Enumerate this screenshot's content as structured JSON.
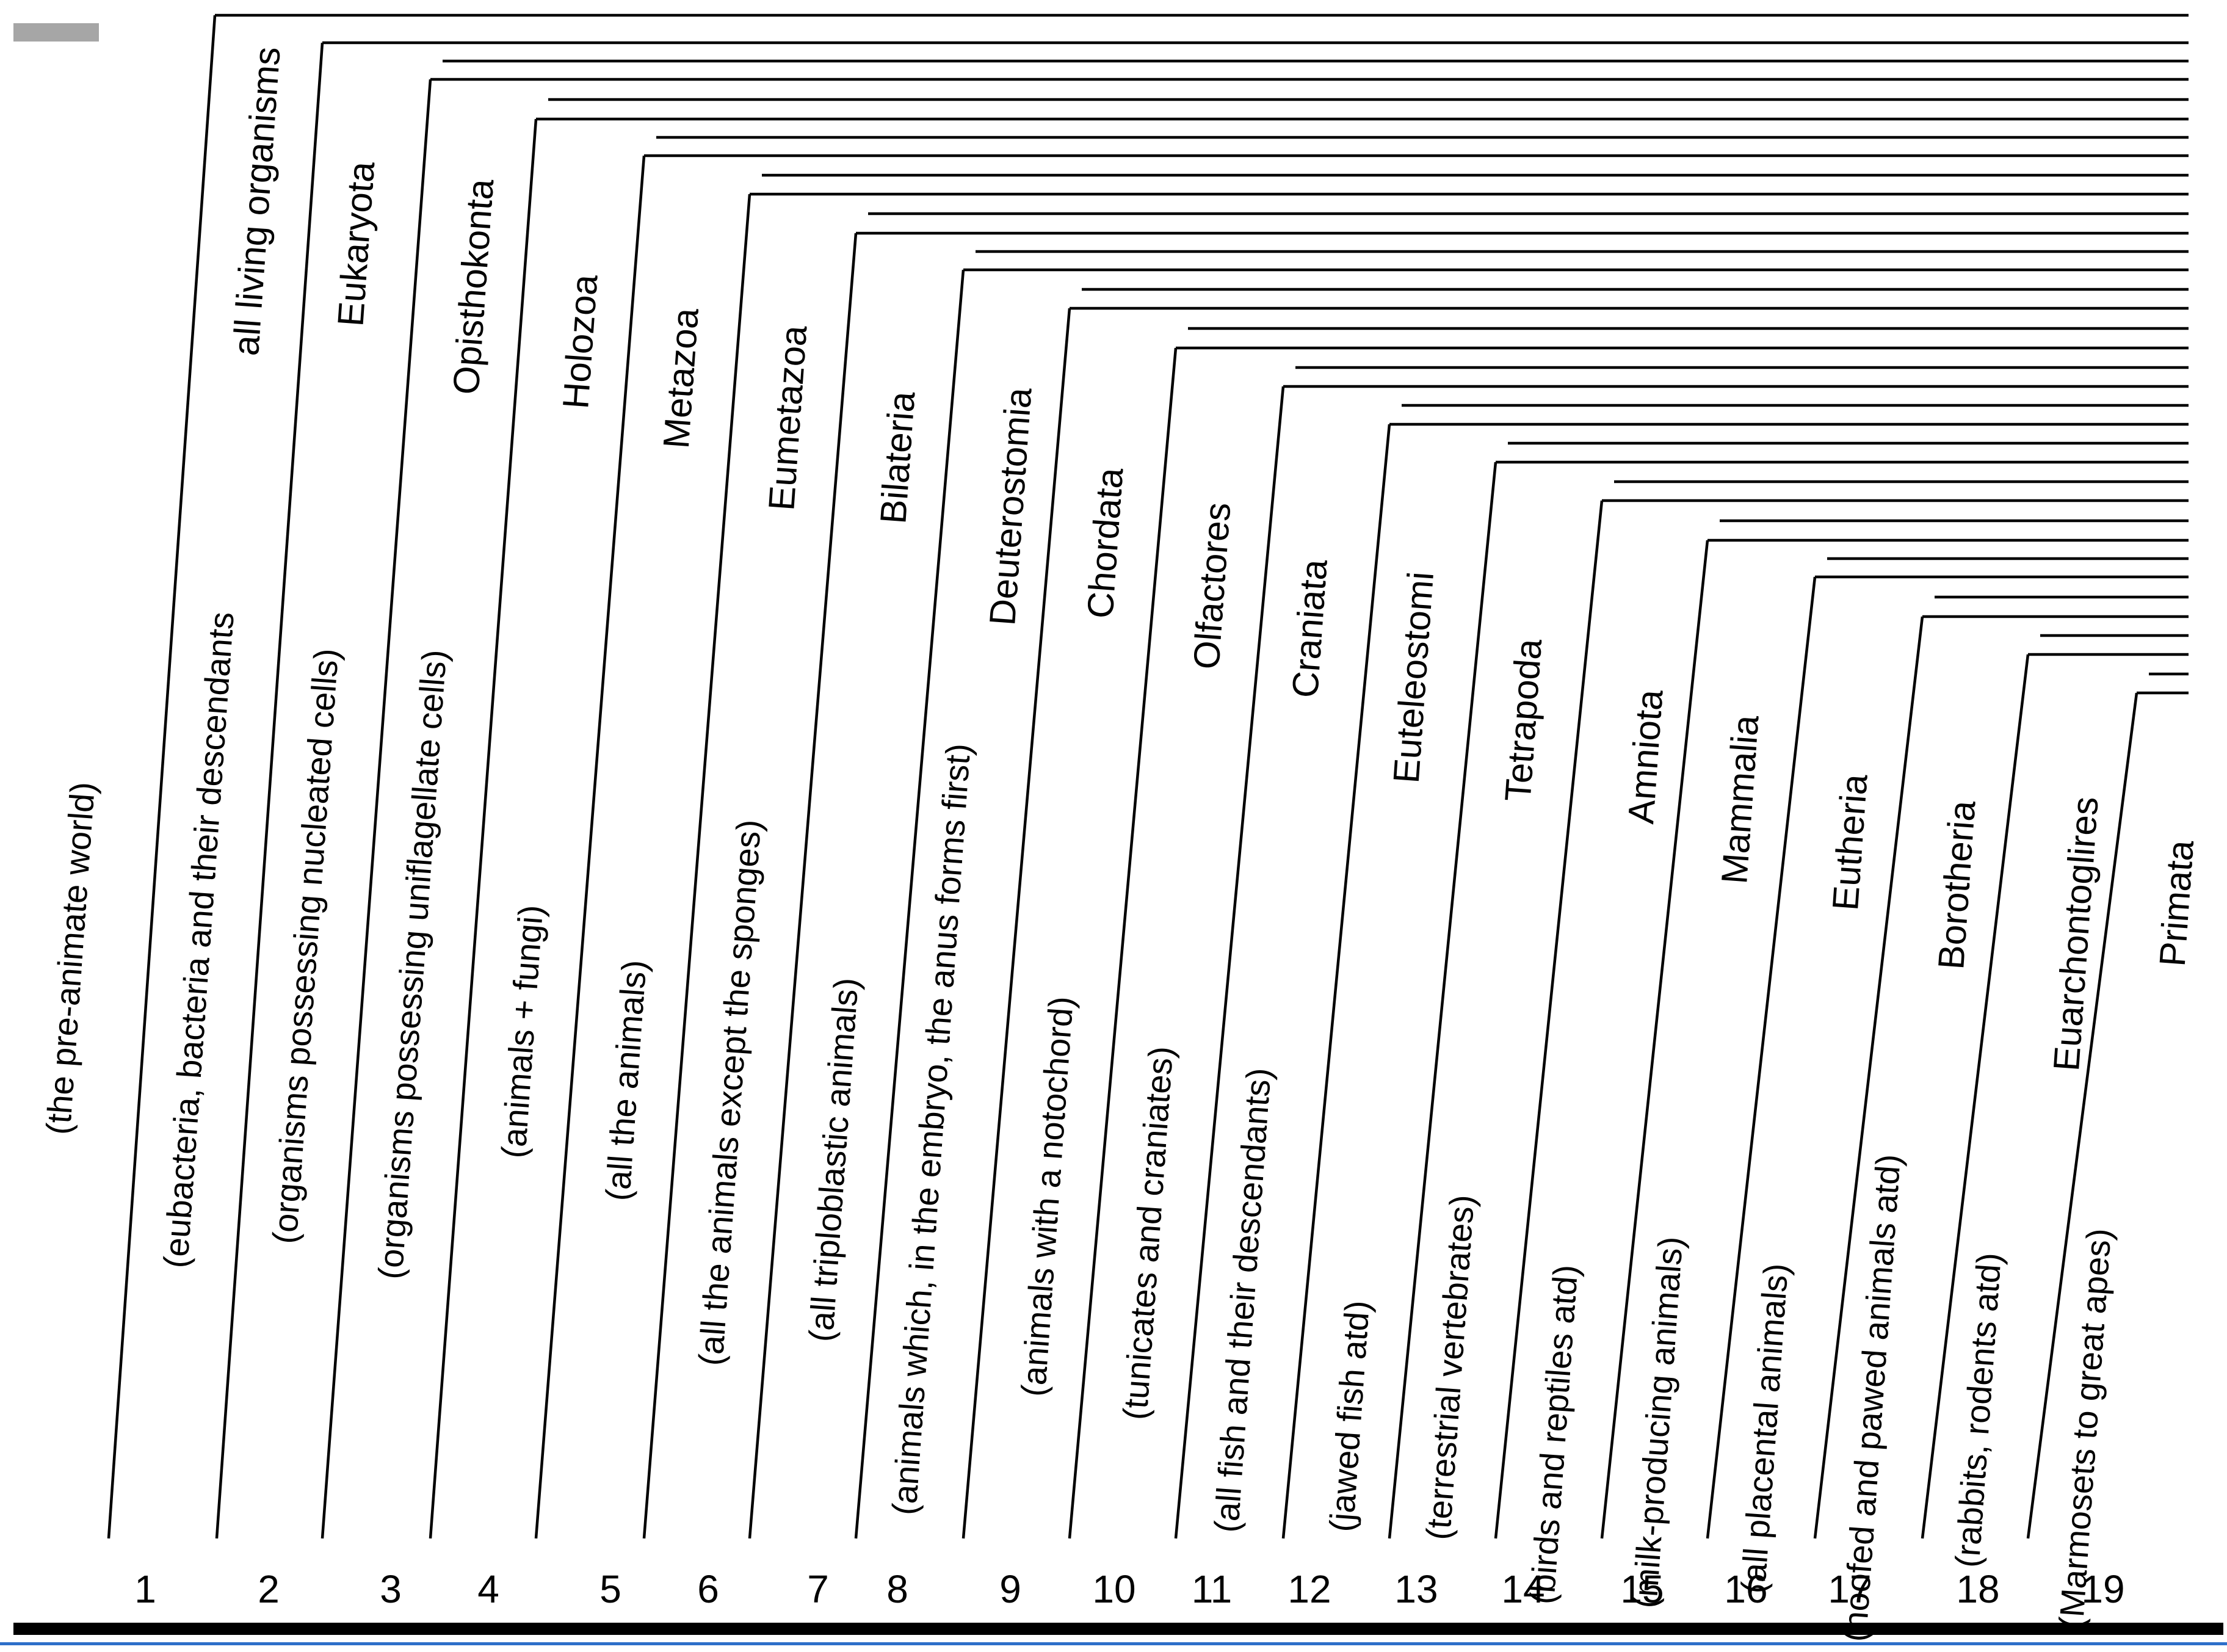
{
  "diagram": {
    "type": "cladogram",
    "line_color": "#000000",
    "bottom_bar_color": "#000000",
    "accent_rule_color": "#2e6fc9",
    "corner_swatch_color": "#a6a6a6",
    "stages": [
      {
        "number": "1",
        "name": "",
        "description": "(the pre-animate world)"
      },
      {
        "number": "2",
        "name": "all living organisms",
        "description": "(eubacteria, bacteria and their descendants"
      },
      {
        "number": "3",
        "name": "Eukaryota",
        "description": "(organisms possessing nucleated cells)"
      },
      {
        "number": "4",
        "name": "Opisthokonta",
        "description": "(organisms possessing uniflagellate cells)"
      },
      {
        "number": "5",
        "name": "Holozoa",
        "description": "(animals + fungi)"
      },
      {
        "number": "6",
        "name": "Metazoa",
        "description": "(all the animals)"
      },
      {
        "number": "7",
        "name": "Eumetazoa",
        "description": "(all the animals except the sponges)"
      },
      {
        "number": "8",
        "name": "Bilateria",
        "description": "(all triploblastic animals)"
      },
      {
        "number": "9",
        "name": "Deuterostomia",
        "description": "(animals which, in the embryo, the anus forms first)"
      },
      {
        "number": "10",
        "name": "Chordata",
        "description": "(animals with a notochord)"
      },
      {
        "number": "11",
        "name": "Olfactores",
        "description": "(tunicates and craniates)"
      },
      {
        "number": "12",
        "name": "Craniata",
        "description": "(all fish and their descendants)"
      },
      {
        "number": "13",
        "name": "Euteleostomi",
        "description": "(jawed fish atd)"
      },
      {
        "number": "14",
        "name": "Tetrapoda",
        "description": "(terrestrial vertebrates)"
      },
      {
        "number": "15",
        "name": "Amniota",
        "description": "(birds and reptiles atd)"
      },
      {
        "number": "16",
        "name": "Mammalia",
        "description": "(milk-producing animals)"
      },
      {
        "number": "17",
        "name": "Eutheria",
        "description": "(all placental animals)"
      },
      {
        "number": "18",
        "name": "Borotheria",
        "description": "(hoofed and pawed animals atd)"
      },
      {
        "number": "19",
        "name": "Euarchontoglires",
        "description": "(rabbits, rodents atd)"
      },
      {
        "number": "",
        "name": "Primata",
        "description": "(Marmosets to great apes)"
      }
    ]
  }
}
